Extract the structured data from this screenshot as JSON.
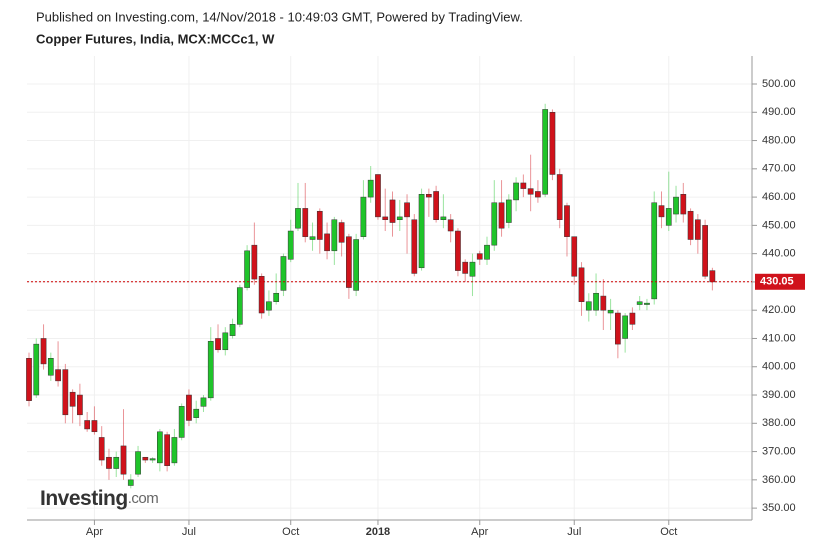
{
  "chart_data": {
    "type": "candlestick",
    "header": "Published on Investing.com, 14/Nov/2018 - 10:49:03 GMT, Powered by TradingView.",
    "title": "Copper Futures, India, MCX:MCCc1, W",
    "watermark": [
      "Investing",
      ".com"
    ],
    "up_color": "#1fc42a",
    "down_color": "#d0121b",
    "grid": true,
    "categories": [
      null,
      null,
      null,
      null,
      null,
      null,
      null,
      null,
      null,
      "Apr",
      null,
      null,
      null,
      null,
      null,
      null,
      null,
      null,
      null,
      null,
      null,
      null,
      "Jul",
      null,
      null,
      null,
      null,
      null,
      null,
      null,
      null,
      null,
      null,
      null,
      null,
      null,
      "Oct",
      null,
      null,
      null,
      null,
      null,
      null,
      null,
      null,
      null,
      null,
      null,
      "2018",
      null,
      null,
      null,
      null,
      null,
      null,
      null,
      null,
      null,
      null,
      null,
      null,
      null,
      "Apr",
      null,
      null,
      null,
      null,
      null,
      null,
      null,
      null,
      null,
      null,
      null,
      null,
      "Jul",
      null,
      null,
      null,
      null,
      null,
      null,
      null,
      null,
      null,
      null,
      null,
      null,
      "Oct",
      null,
      null,
      null,
      null,
      null,
      null
    ],
    "open": [
      403,
      390,
      410,
      397,
      399,
      399,
      391,
      390,
      381,
      381,
      375,
      368,
      364,
      372,
      358,
      362,
      368,
      367,
      366,
      376,
      366,
      375,
      390,
      382,
      386,
      389,
      410,
      406,
      411,
      415,
      428,
      443,
      432,
      420,
      423,
      427,
      438,
      449,
      456,
      445,
      455,
      447,
      441,
      451,
      446,
      427,
      446,
      460,
      468,
      453,
      459,
      452,
      458,
      452,
      435,
      461,
      462,
      452,
      452,
      448,
      437,
      432,
      440,
      438,
      443,
      458,
      451,
      459,
      465,
      463,
      462,
      461,
      490,
      468,
      457,
      446,
      435,
      420,
      420,
      425,
      419,
      419,
      410,
      419,
      422,
      422,
      424,
      457,
      450,
      454,
      461,
      455,
      452,
      450,
      434
    ],
    "high": [
      405,
      410,
      415,
      405,
      409,
      401,
      392,
      394,
      384,
      386,
      379,
      371,
      370,
      385,
      362,
      372,
      368,
      368,
      378,
      377,
      378,
      387,
      392,
      388,
      390,
      414,
      415,
      414,
      417,
      429,
      443,
      451,
      433,
      427,
      433,
      440,
      452,
      465,
      465,
      451,
      456,
      451,
      453,
      452,
      447,
      447,
      466,
      471,
      468,
      463,
      462,
      459,
      461,
      454,
      463,
      463,
      464,
      461,
      454,
      449,
      438,
      440,
      441,
      446,
      466,
      466,
      461,
      467,
      468,
      475,
      466,
      493,
      491,
      470,
      458,
      446,
      437,
      426,
      433,
      431,
      424,
      420,
      419,
      421,
      425,
      424,
      462,
      462,
      469,
      464,
      465,
      456,
      454,
      452,
      435
    ],
    "low": [
      386,
      389,
      399,
      395,
      393,
      380,
      380,
      379,
      377,
      376,
      365,
      360,
      361,
      360,
      357,
      361,
      366,
      366,
      363,
      363,
      365,
      374,
      379,
      380,
      384,
      388,
      405,
      404,
      410,
      414,
      427,
      429,
      417,
      418,
      422,
      425,
      437,
      448,
      444,
      441,
      440,
      438,
      436,
      439,
      424,
      425,
      445,
      458,
      452,
      448,
      446,
      448,
      440,
      432,
      434,
      453,
      451,
      449,
      444,
      432,
      430,
      425,
      436,
      436,
      441,
      446,
      449,
      455,
      460,
      455,
      458,
      460,
      466,
      449,
      439,
      429,
      418,
      416,
      418,
      413,
      413,
      403,
      405,
      413,
      420,
      420,
      422,
      449,
      448,
      451,
      451,
      443,
      440,
      431,
      427
    ],
    "close": [
      388,
      408,
      401,
      403,
      395,
      383,
      386,
      383,
      378,
      377,
      367,
      364,
      368,
      362,
      360,
      370,
      367,
      367.5,
      377,
      365,
      375,
      386,
      381,
      385,
      389,
      409,
      406,
      412,
      415,
      428,
      441,
      431,
      419,
      423,
      426,
      439,
      448,
      456,
      446,
      446,
      445,
      441,
      452,
      444,
      428,
      445,
      460,
      466,
      453,
      452,
      451,
      453,
      453,
      433,
      461,
      460,
      452,
      453,
      448,
      434,
      433,
      437,
      438,
      443,
      458,
      449,
      459,
      465,
      463,
      461,
      460,
      491,
      468,
      452,
      446,
      432,
      423,
      423,
      426,
      420,
      420,
      408,
      418,
      415,
      423,
      422.5,
      458,
      453,
      456,
      460,
      454,
      445,
      445,
      432,
      430
    ],
    "last_price": {
      "value": 430.05,
      "label": "430.05"
    },
    "ylim": [
      345.8,
      509.9
    ],
    "yticks": [
      {
        "value": 350,
        "label": "350.00"
      },
      {
        "value": 360,
        "label": "360.00"
      },
      {
        "value": 370,
        "label": "370.00"
      },
      {
        "value": 380,
        "label": "380.00"
      },
      {
        "value": 390,
        "label": "390.00"
      },
      {
        "value": 400,
        "label": "400.00"
      },
      {
        "value": 410,
        "label": "410.00"
      },
      {
        "value": 420,
        "label": "420.00"
      },
      {
        "value": 430,
        "label": "430.00"
      },
      {
        "value": 440,
        "label": "440.00"
      },
      {
        "value": 450,
        "label": "450.00"
      },
      {
        "value": 460,
        "label": "460.00"
      },
      {
        "value": 470,
        "label": "470.00"
      },
      {
        "value": 480,
        "label": "480.00"
      },
      {
        "value": 490,
        "label": "490.00"
      },
      {
        "value": 500,
        "label": "500.00"
      }
    ]
  }
}
